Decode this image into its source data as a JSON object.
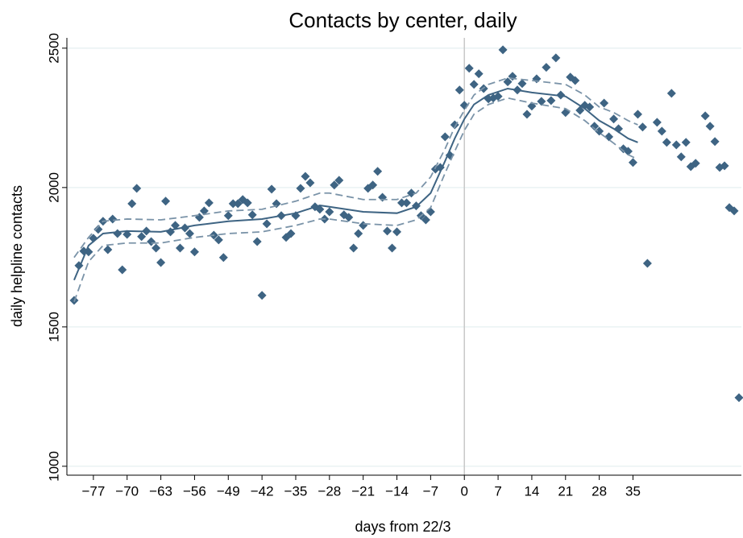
{
  "chart_data": {
    "type": "scatter",
    "title": "Contacts by center, daily",
    "xlabel": "days from 22/3",
    "ylabel": "daily helpline contacts",
    "xlim": [
      -82.5,
      57.5
    ],
    "ylim": [
      968,
      2537
    ],
    "xticks": [
      {
        "value": -77,
        "label": "−77"
      },
      {
        "value": -70,
        "label": "−70"
      },
      {
        "value": -63,
        "label": "−63"
      },
      {
        "value": -56,
        "label": "−56"
      },
      {
        "value": -49,
        "label": "−49"
      },
      {
        "value": -42,
        "label": "−42"
      },
      {
        "value": -35,
        "label": "−35"
      },
      {
        "value": -28,
        "label": "−28"
      },
      {
        "value": -21,
        "label": "−21"
      },
      {
        "value": -14,
        "label": "−14"
      },
      {
        "value": -7,
        "label": "−7"
      },
      0,
      7,
      14,
      21,
      28,
      35
    ],
    "yticks": [
      1000,
      1500,
      2000,
      2500
    ],
    "grid": true,
    "vline": 0,
    "series": [
      {
        "mode": "markers",
        "color": "#3e6483",
        "x": [
          -81,
          -80,
          -79,
          -78,
          -77,
          -76,
          -75,
          -74,
          -73,
          -72,
          -71,
          -70,
          -69,
          -68,
          -67,
          -66,
          -65,
          -64,
          -63,
          -62,
          -61,
          -60,
          -59,
          -58,
          -57,
          -56,
          -55,
          -54,
          -53,
          -52,
          -51,
          -50,
          -49,
          -48,
          -47,
          -46,
          -45,
          -44,
          -43,
          -42,
          -41,
          -40,
          -39,
          -38,
          -37,
          -36,
          -35,
          -34,
          -33,
          -32,
          -31,
          -30,
          -29,
          -28,
          -27,
          -26,
          -25,
          -24,
          -23,
          -22,
          -21,
          -20,
          -19,
          -18,
          -17,
          -16,
          -15,
          -14,
          -13,
          -12,
          -11,
          -10,
          -9,
          -8,
          -7,
          -6,
          -5,
          -4,
          -3,
          -2,
          -1,
          0,
          1,
          2,
          3,
          4,
          5,
          6,
          7,
          8,
          9,
          10,
          11,
          12,
          13,
          14,
          15,
          16,
          17,
          18,
          19,
          20,
          21,
          22,
          23,
          24,
          25,
          26,
          27,
          28,
          29,
          30,
          31,
          32,
          33,
          34,
          35,
          36,
          37,
          38,
          40,
          41,
          42,
          43,
          44,
          45,
          46,
          47,
          48,
          50,
          51,
          52,
          53,
          54,
          55,
          56,
          57
        ],
        "values": [
          1595,
          1720,
          1772,
          1769,
          1818,
          1850,
          1879,
          1777,
          1887,
          1835,
          1705,
          1832,
          1942,
          1997,
          1824,
          1844,
          1806,
          1783,
          1731,
          1951,
          1841,
          1864,
          1783,
          1855,
          1835,
          1769,
          1893,
          1916,
          1945,
          1829,
          1812,
          1749,
          1899,
          1942,
          1942,
          1957,
          1945,
          1902,
          1806,
          1613,
          1870,
          1994,
          1942,
          1899,
          1821,
          1835,
          1899,
          1997,
          2040,
          2017,
          1931,
          1922,
          1887,
          1913,
          2009,
          2026,
          1902,
          1893,
          1783,
          1835,
          1864,
          1997,
          2009,
          2058,
          1965,
          1844,
          1783,
          1841,
          1945,
          1945,
          1980,
          1934,
          1899,
          1884,
          1913,
          2066,
          2072,
          2182,
          2116,
          2225,
          2350,
          2295,
          2428,
          2370,
          2408,
          2355,
          2318,
          2321,
          2327,
          2494,
          2379,
          2399,
          2350,
          2373,
          2263,
          2292,
          2390,
          2309,
          2431,
          2312,
          2465,
          2332,
          2269,
          2396,
          2384,
          2277,
          2295,
          2289,
          2220,
          2202,
          2303,
          2182,
          2246,
          2211,
          2139,
          2130,
          2090,
          2263,
          2217,
          1728,
          2234,
          2202,
          2162,
          2338,
          2153,
          2110,
          2162,
          2075,
          2087,
          2257,
          2220,
          2165,
          2072,
          2078,
          1928,
          1916,
          1246
        ]
      },
      {
        "mode": "line",
        "color": "#3e6483",
        "dash": false,
        "x": [
          -81,
          -78,
          -75,
          -70,
          -63,
          -56,
          -49,
          -42,
          -35,
          -30,
          -28,
          -21,
          -14,
          -10,
          -7,
          -4,
          -2,
          0,
          2,
          5,
          9,
          14,
          21,
          25,
          28,
          31,
          34,
          36
        ],
        "values": [
          1668,
          1792,
          1835,
          1844,
          1841,
          1864,
          1879,
          1887,
          1908,
          1936,
          1931,
          1913,
          1908,
          1931,
          1980,
          2095,
          2176,
          2246,
          2298,
          2332,
          2355,
          2341,
          2327,
          2283,
          2240,
          2211,
          2176,
          2162
        ]
      },
      {
        "mode": "line",
        "color": "#7a93a8",
        "dash": true,
        "x": [
          -81,
          -78,
          -75,
          -70,
          -63,
          -56,
          -49,
          -42,
          -35,
          -30,
          -28,
          -21,
          -14,
          -10,
          -7,
          -4,
          -2,
          0,
          2,
          5,
          9,
          14,
          21,
          25,
          28,
          31,
          34,
          36
        ],
        "values": [
          1749,
          1821,
          1879,
          1887,
          1884,
          1899,
          1916,
          1922,
          1951,
          1980,
          1980,
          1957,
          1957,
          1980,
          2038,
          2139,
          2217,
          2277,
          2332,
          2370,
          2393,
          2384,
          2370,
          2332,
          2289,
          2269,
          2240,
          2225
        ]
      },
      {
        "mode": "line",
        "color": "#7a93a8",
        "dash": true,
        "x": [
          -81,
          -78,
          -75,
          -70,
          -63,
          -56,
          -49,
          -42,
          -35,
          -30,
          -28,
          -21,
          -14,
          -10,
          -7,
          -4,
          -2,
          0,
          2,
          5,
          9,
          14,
          21,
          25,
          28,
          31,
          34,
          36
        ],
        "values": [
          1590,
          1734,
          1792,
          1801,
          1801,
          1821,
          1835,
          1841,
          1864,
          1887,
          1887,
          1870,
          1864,
          1884,
          1928,
          2052,
          2130,
          2205,
          2263,
          2298,
          2321,
          2303,
          2283,
          2240,
          2197,
          2159,
          2118,
          2101
        ]
      }
    ]
  }
}
